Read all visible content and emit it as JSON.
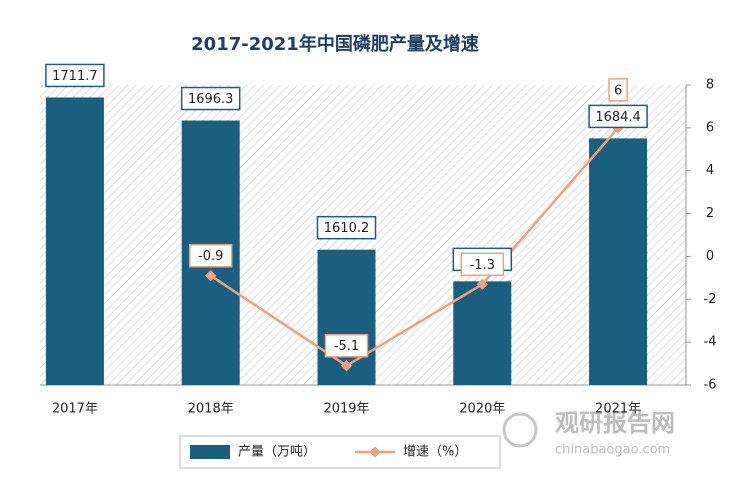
{
  "chart_data": {
    "type": "bar",
    "title": "2017-2021年中国磷肥产量及增速",
    "categories": [
      "2017年",
      "2018年",
      "2019年",
      "2020年",
      "2021年"
    ],
    "series": [
      {
        "name": "产量（万吨）",
        "type": "bar",
        "color": "#1b5f80",
        "values": [
          1711.7,
          1696.3,
          1610.2,
          1589.1,
          1684.4
        ]
      },
      {
        "name": "增速（%）",
        "type": "line",
        "axis": "y2",
        "color": "#eea27a",
        "values": [
          null,
          -0.9,
          -5.1,
          -1.3,
          6
        ]
      }
    ],
    "ylim": [
      1520,
      1720
    ],
    "y2lim": [
      -6,
      8
    ],
    "y2ticks": [
      -6,
      -4,
      -2,
      0,
      2,
      4,
      6,
      8
    ],
    "watermark": {
      "name": "观研报告网",
      "url": "chinabaogao.com"
    }
  }
}
